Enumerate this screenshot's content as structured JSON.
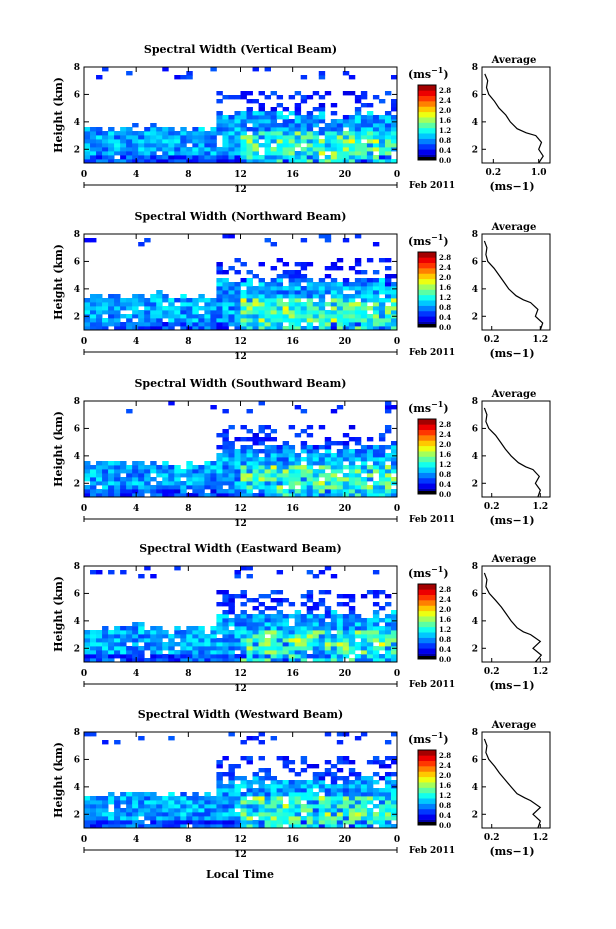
{
  "figure": {
    "xaxis_title": "Local Time",
    "date_label": "Feb 2011",
    "day_label": "12",
    "unit_label": "(ms",
    "unit_exp": "−1",
    "ylabel": "Height (km)",
    "avg_title": "Average"
  },
  "chart_data": [
    {
      "type": "heatmap",
      "title": "Spectral Width (Vertical Beam)",
      "xlabel": "Local Time",
      "ylabel": "Height (km)",
      "xlim": [
        0,
        24
      ],
      "ylim": [
        1,
        8
      ],
      "xticks": [
        "0",
        "4",
        "8",
        "12",
        "16",
        "20",
        "0"
      ],
      "yticks": [
        "2",
        "4",
        "6",
        "8"
      ],
      "colorbar": {
        "label": "(ms−1)",
        "ticks": [
          "0.0",
          "0.4",
          "0.8",
          "1.2",
          "1.6",
          "2.0",
          "2.4",
          "2.8"
        ],
        "range": [
          0,
          3
        ]
      },
      "average": {
        "title": "Average",
        "xlabel": "(ms−1)",
        "xticks": [
          "0.2",
          "1.0"
        ],
        "xlim": [
          0,
          1.2
        ],
        "profile": [
          [
            1.0,
            1.0
          ],
          [
            1.5,
            1.08
          ],
          [
            2.0,
            1.0
          ],
          [
            2.5,
            1.05
          ],
          [
            3.0,
            0.95
          ],
          [
            3.2,
            0.78
          ],
          [
            3.5,
            0.62
          ],
          [
            4.0,
            0.5
          ],
          [
            4.5,
            0.42
          ],
          [
            5.0,
            0.3
          ],
          [
            5.5,
            0.22
          ],
          [
            6.0,
            0.12
          ],
          [
            6.5,
            0.08
          ],
          [
            7.0,
            0.1
          ],
          [
            7.5,
            0.05
          ]
        ]
      }
    },
    {
      "type": "heatmap",
      "title": "Spectral Width (Northward Beam)",
      "xlabel": "Local Time",
      "ylabel": "Height (km)",
      "xlim": [
        0,
        24
      ],
      "ylim": [
        1,
        8
      ],
      "xticks": [
        "0",
        "4",
        "8",
        "12",
        "16",
        "20",
        "0"
      ],
      "yticks": [
        "2",
        "4",
        "6",
        "8"
      ],
      "colorbar": {
        "label": "(ms−1)",
        "ticks": [
          "0.0",
          "0.4",
          "0.8",
          "1.2",
          "1.6",
          "2.0",
          "2.4",
          "2.8"
        ],
        "range": [
          0,
          3
        ]
      },
      "average": {
        "title": "Average",
        "xlabel": "(ms−1)",
        "xticks": [
          "0.2",
          "1.2"
        ],
        "xlim": [
          0,
          1.4
        ],
        "profile": [
          [
            1.0,
            1.2
          ],
          [
            1.5,
            1.25
          ],
          [
            2.0,
            1.1
          ],
          [
            2.5,
            1.15
          ],
          [
            3.0,
            1.0
          ],
          [
            3.2,
            0.85
          ],
          [
            3.5,
            0.7
          ],
          [
            4.0,
            0.55
          ],
          [
            4.5,
            0.45
          ],
          [
            5.0,
            0.35
          ],
          [
            5.5,
            0.25
          ],
          [
            6.0,
            0.12
          ],
          [
            6.5,
            0.08
          ],
          [
            7.0,
            0.1
          ],
          [
            7.5,
            0.05
          ]
        ]
      }
    },
    {
      "type": "heatmap",
      "title": "Spectral Width (Southward Beam)",
      "xlabel": "Local Time",
      "ylabel": "Height (km)",
      "xlim": [
        0,
        24
      ],
      "ylim": [
        1,
        8
      ],
      "xticks": [
        "0",
        "4",
        "8",
        "12",
        "16",
        "20",
        "0"
      ],
      "yticks": [
        "2",
        "4",
        "6",
        "8"
      ],
      "colorbar": {
        "label": "(ms−1)",
        "ticks": [
          "0.0",
          "0.4",
          "0.8",
          "1.2",
          "1.6",
          "2.0",
          "2.4",
          "2.8"
        ],
        "range": [
          0,
          3
        ]
      },
      "average": {
        "title": "Average",
        "xlabel": "(ms−1)",
        "xticks": [
          "0.2",
          "1.2"
        ],
        "xlim": [
          0,
          1.4
        ],
        "profile": [
          [
            1.0,
            1.15
          ],
          [
            1.5,
            1.2
          ],
          [
            2.0,
            1.1
          ],
          [
            2.5,
            1.18
          ],
          [
            3.0,
            1.05
          ],
          [
            3.2,
            0.9
          ],
          [
            3.5,
            0.75
          ],
          [
            4.0,
            0.6
          ],
          [
            4.5,
            0.48
          ],
          [
            5.0,
            0.38
          ],
          [
            5.5,
            0.28
          ],
          [
            6.0,
            0.14
          ],
          [
            6.5,
            0.08
          ],
          [
            7.0,
            0.1
          ],
          [
            7.5,
            0.05
          ]
        ]
      }
    },
    {
      "type": "heatmap",
      "title": "Spectral Width (Eastward Beam)",
      "xlabel": "Local Time",
      "ylabel": "Height (km)",
      "xlim": [
        0,
        24
      ],
      "ylim": [
        1,
        8
      ],
      "xticks": [
        "0",
        "4",
        "8",
        "12",
        "16",
        "20",
        "0"
      ],
      "yticks": [
        "2",
        "4",
        "6",
        "8"
      ],
      "colorbar": {
        "label": "(ms−1)",
        "ticks": [
          "0.0",
          "0.4",
          "0.8",
          "1.2",
          "1.6",
          "2.0",
          "2.4",
          "2.8"
        ],
        "range": [
          0,
          3
        ]
      },
      "average": {
        "title": "Average",
        "xlabel": "(ms−1)",
        "xticks": [
          "0.2",
          "1.2"
        ],
        "xlim": [
          0,
          1.4
        ],
        "profile": [
          [
            1.0,
            1.1
          ],
          [
            1.5,
            1.22
          ],
          [
            2.0,
            1.05
          ],
          [
            2.5,
            1.2
          ],
          [
            3.0,
            1.0
          ],
          [
            3.2,
            0.85
          ],
          [
            3.5,
            0.72
          ],
          [
            4.0,
            0.6
          ],
          [
            4.5,
            0.5
          ],
          [
            5.0,
            0.4
          ],
          [
            5.5,
            0.28
          ],
          [
            6.0,
            0.15
          ],
          [
            6.5,
            0.08
          ],
          [
            7.0,
            0.1
          ],
          [
            7.5,
            0.05
          ]
        ]
      }
    },
    {
      "type": "heatmap",
      "title": "Spectral Width (Westward Beam)",
      "xlabel": "Local Time",
      "ylabel": "Height (km)",
      "xlim": [
        0,
        24
      ],
      "ylim": [
        1,
        8
      ],
      "xticks": [
        "0",
        "4",
        "8",
        "12",
        "16",
        "20",
        "0"
      ],
      "yticks": [
        "2",
        "4",
        "6",
        "8"
      ],
      "colorbar": {
        "label": "(ms−1)",
        "ticks": [
          "0.0",
          "0.4",
          "0.8",
          "1.2",
          "1.6",
          "2.0",
          "2.4",
          "2.8"
        ],
        "range": [
          0,
          3
        ]
      },
      "average": {
        "title": "Average",
        "xlabel": "(ms−1)",
        "xticks": [
          "0.2",
          "1.2"
        ],
        "xlim": [
          0,
          1.4
        ],
        "profile": [
          [
            1.0,
            1.15
          ],
          [
            1.5,
            1.2
          ],
          [
            2.0,
            1.05
          ],
          [
            2.5,
            1.2
          ],
          [
            3.0,
            1.0
          ],
          [
            3.2,
            0.88
          ],
          [
            3.5,
            0.72
          ],
          [
            4.0,
            0.6
          ],
          [
            4.5,
            0.48
          ],
          [
            5.0,
            0.36
          ],
          [
            5.5,
            0.26
          ],
          [
            6.0,
            0.14
          ],
          [
            6.5,
            0.08
          ],
          [
            7.0,
            0.1
          ],
          [
            7.5,
            0.05
          ]
        ]
      }
    }
  ]
}
